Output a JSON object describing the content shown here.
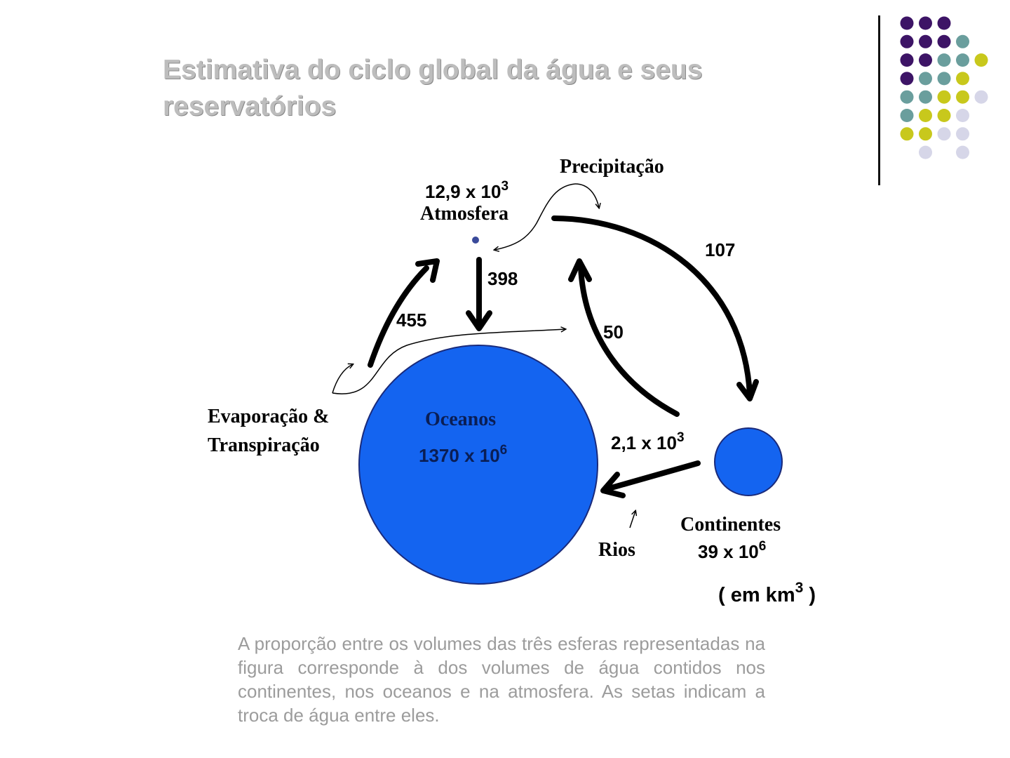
{
  "title": "Estimativa do ciclo global da água e seus reservatórios",
  "decor": {
    "dot_colors": {
      "purple": "#3d1466",
      "teal": "#6a9e9d",
      "yellow": "#c8c81c",
      "lavender": "#d6d6e8"
    },
    "divider_color": "#111111"
  },
  "diagram": {
    "reservoirs": {
      "atmosphere": {
        "label": "Atmosfera",
        "value": "12,9 x 10",
        "exp": "3"
      },
      "oceans": {
        "label": "Oceanos",
        "value": "1370 x 10",
        "exp": "6"
      },
      "continents": {
        "label": "Continentes",
        "value": "39 x 10",
        "exp": "6"
      }
    },
    "flows": {
      "evaporation_ocean": "455",
      "precipitation_ocean": "398",
      "precipitation_land": "107",
      "evapotranspiration_land": "50",
      "runoff": "2,1 x 10",
      "runoff_exp": "3"
    },
    "process_labels": {
      "precipitation": "Precipitação",
      "evaporation_line1": "Evaporação &",
      "evaporation_line2": "Transpiração",
      "rivers": "Rios"
    },
    "units": {
      "text": "( em km",
      "exp": "3",
      "close": " )"
    },
    "colors": {
      "reservoir_fill": "#1464f0",
      "reservoir_stroke": "#1a2a7a",
      "arrow": "#000000",
      "atmosphere_dot": "#3a4a9a"
    }
  },
  "caption": "A proporção entre os volumes das três esferas representadas na figura corresponde à dos volumes de água contidos nos continentes, nos oceanos e na atmosfera. As setas indicam a troca de água entre eles."
}
